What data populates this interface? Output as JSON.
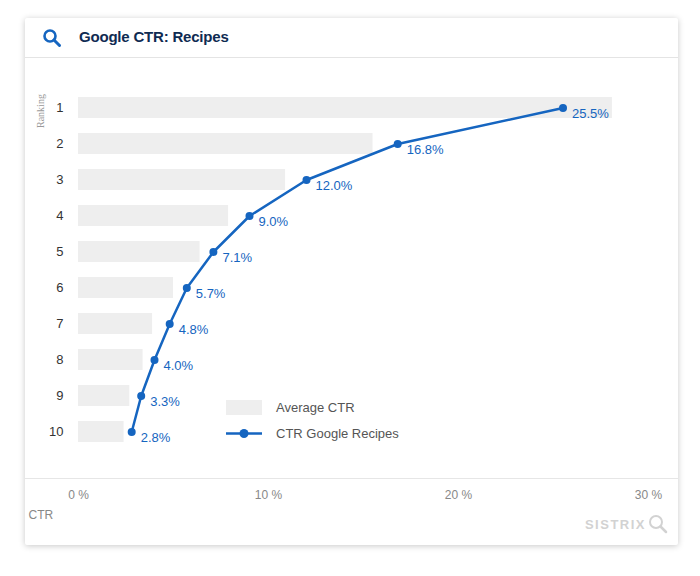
{
  "chart_data": {
    "type": "bar",
    "title": "Google CTR: Recipes",
    "orientation": "horizontal",
    "ylabel": "Ranking",
    "xlabel": "CTR",
    "categories": [
      "1",
      "2",
      "3",
      "4",
      "5",
      "6",
      "7",
      "8",
      "9",
      "10"
    ],
    "series": [
      {
        "name": "Average CTR",
        "type": "bar",
        "color": "#eeeeee",
        "values": [
          28.1,
          15.5,
          10.9,
          7.9,
          6.4,
          5.0,
          3.9,
          3.4,
          2.7,
          2.4
        ]
      },
      {
        "name": "CTR Google Recipes",
        "type": "line",
        "color": "#1565c0",
        "marker": "circle",
        "data_labels": true,
        "values": [
          25.5,
          16.8,
          12.0,
          9.0,
          7.1,
          5.7,
          4.8,
          4.0,
          3.3,
          2.8
        ],
        "value_labels": [
          "25.5%",
          "16.8%",
          "12.0%",
          "9.0%",
          "7.1%",
          "5.7%",
          "4.8%",
          "4.0%",
          "3.3%",
          "2.8%"
        ]
      }
    ],
    "xlim": [
      0,
      30
    ],
    "xticks": [
      {
        "value": 0,
        "label": "0 %"
      },
      {
        "value": 10,
        "label": "10 %"
      },
      {
        "value": 20,
        "label": "20 %"
      },
      {
        "value": 30,
        "label": "30 %"
      }
    ],
    "grid": false,
    "legend": "bottom",
    "source": "SISTRIX"
  }
}
